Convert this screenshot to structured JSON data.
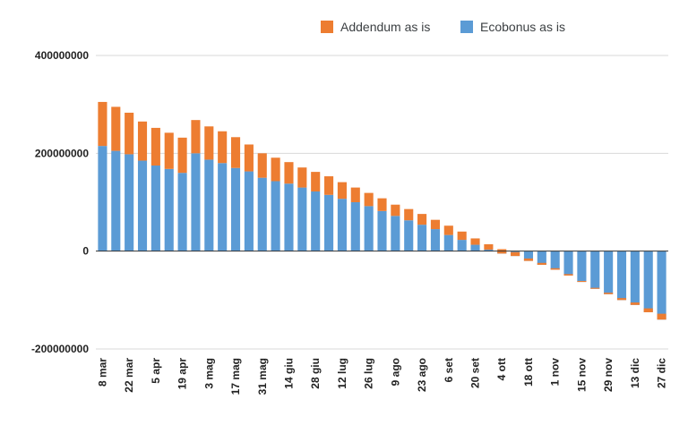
{
  "chart_data": {
    "type": "bar",
    "stacked": true,
    "categories": [
      "8 mar",
      "15 mar",
      "22 mar",
      "29 mar",
      "5 apr",
      "12 apr",
      "19 apr",
      "26 apr",
      "3 mag",
      "10 mag",
      "17 mag",
      "24 mag",
      "31 mag",
      "7 giu",
      "14 giu",
      "21 giu",
      "28 giu",
      "5 lug",
      "12 lug",
      "19 lug",
      "26 lug",
      "2 ago",
      "9 ago",
      "16 ago",
      "23 ago",
      "30 ago",
      "6 set",
      "13 set",
      "20 set",
      "27 set",
      "4 ott",
      "11 ott",
      "18 ott",
      "25 ott",
      "1 nov",
      "8 nov",
      "15 nov",
      "22 nov",
      "29 nov",
      "6 dic",
      "13 dic",
      "20 dic",
      "27 dic"
    ],
    "tick_labels": [
      "8 mar",
      "",
      "22 mar",
      "",
      "5 apr",
      "",
      "19 apr",
      "",
      "3 mag",
      "",
      "17 mag",
      "",
      "31 mag",
      "",
      "14 giu",
      "",
      "28 giu",
      "",
      "12 lug",
      "",
      "26 lug",
      "",
      "9 ago",
      "",
      "23 ago",
      "",
      "6 set",
      "",
      "20 set",
      "",
      "4 ott",
      "",
      "18 ott",
      "",
      "1 nov",
      "",
      "15 nov",
      "",
      "29 nov",
      "",
      "13 dic",
      "",
      "27 dic"
    ],
    "series": [
      {
        "name": "Ecobonus as is",
        "color": "#5b9bd5",
        "values": [
          215000000,
          205000000,
          198000000,
          185000000,
          175000000,
          168000000,
          160000000,
          200000000,
          187000000,
          180000000,
          170000000,
          163000000,
          150000000,
          143000000,
          138000000,
          130000000,
          122000000,
          115000000,
          107000000,
          100000000,
          92000000,
          82000000,
          72000000,
          63000000,
          54000000,
          45000000,
          33000000,
          23000000,
          13000000,
          3000000,
          -5000000,
          -10000000,
          -20000000,
          -28000000,
          -38000000,
          -50000000,
          -63000000,
          -77000000,
          -88000000,
          -100000000,
          -110000000,
          -125000000,
          -140000000
        ]
      },
      {
        "name": "Addendum as is",
        "color": "#ed7d31",
        "values": [
          90000000,
          90000000,
          85000000,
          80000000,
          77000000,
          74000000,
          72000000,
          68000000,
          68000000,
          65000000,
          63000000,
          55000000,
          50000000,
          48000000,
          44000000,
          41000000,
          40000000,
          38000000,
          34000000,
          30000000,
          27000000,
          26000000,
          23000000,
          23000000,
          22000000,
          19000000,
          19000000,
          17000000,
          13000000,
          11000000,
          9000000,
          8000000,
          5000000,
          4000000,
          3000000,
          3000000,
          2000000,
          2000000,
          3000000,
          4000000,
          5000000,
          8000000,
          12000000
        ]
      }
    ],
    "ylim": [
      -200000000,
      400000000
    ],
    "yticks": [
      "400000000",
      "200000000",
      "0",
      "-200000000"
    ],
    "ytick_values": [
      400000000,
      200000000,
      0,
      -200000000
    ],
    "grid": true,
    "legend_position": "top",
    "title": "",
    "xlabel": "",
    "ylabel": ""
  }
}
